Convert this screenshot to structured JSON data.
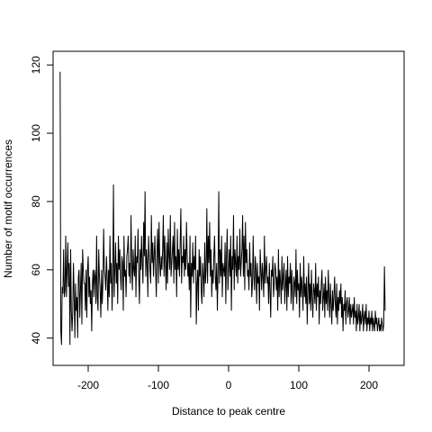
{
  "chart_data": {
    "type": "line",
    "title": "",
    "xlabel": "Distance to peak centre",
    "ylabel": "Number of motif occurrences",
    "xlim": [
      -250,
      250
    ],
    "ylim": [
      32,
      124
    ],
    "x_ticks": [
      -200,
      -100,
      0,
      100,
      200
    ],
    "y_ticks": [
      40,
      60,
      80,
      100,
      120
    ],
    "x_tick_labels": [
      "-200",
      "-100",
      "0",
      "100",
      "200"
    ],
    "y_tick_labels": [
      "40",
      "60",
      "80",
      "100",
      "120"
    ],
    "grid": false,
    "legend": "none",
    "line_color": "#000000",
    "series": [
      {
        "x_start": -240,
        "x_step": 1,
        "values": [
          118,
          42,
          38,
          55,
          53,
          66,
          52,
          54,
          70,
          52,
          60,
          68,
          55,
          62,
          38,
          66,
          48,
          42,
          48,
          62,
          52,
          40,
          56,
          48,
          52,
          40,
          58,
          60,
          46,
          54,
          62,
          44,
          66,
          60,
          56,
          56,
          48,
          60,
          46,
          60,
          64,
          52,
          58,
          50,
          54,
          42,
          56,
          60,
          52,
          60,
          58,
          50,
          70,
          52,
          48,
          66,
          58,
          54,
          46,
          60,
          50,
          56,
          72,
          60,
          58,
          54,
          64,
          58,
          48,
          60,
          52,
          70,
          56,
          62,
          48,
          58,
          85,
          52,
          60,
          68,
          56,
          62,
          50,
          70,
          60,
          66,
          58,
          54,
          64,
          62,
          48,
          70,
          58,
          60,
          52,
          64,
          66,
          70,
          58,
          62,
          56,
          76,
          62,
          54,
          66,
          60,
          58,
          70,
          52,
          64,
          62,
          72,
          58,
          50,
          66,
          60,
          70,
          62,
          56,
          74,
          64,
          83,
          58,
          66,
          62,
          52,
          70,
          64,
          60,
          56,
          76,
          62,
          68,
          58,
          64,
          70,
          60,
          52,
          66,
          72,
          56,
          74,
          62,
          58,
          64,
          60,
          66,
          76,
          58,
          70,
          62,
          54,
          68,
          56,
          72,
          64,
          60,
          76,
          58,
          62,
          66,
          70,
          56,
          74,
          60,
          64,
          52,
          72,
          60,
          66,
          58,
          68,
          78,
          56,
          64,
          62,
          70,
          58,
          66,
          60,
          74,
          64,
          58,
          62,
          54,
          70,
          46,
          62,
          58,
          68,
          56,
          64,
          60,
          70,
          44,
          56,
          60,
          48,
          66,
          58,
          64,
          54,
          50,
          62,
          58,
          52,
          68,
          56,
          60,
          78,
          56,
          70,
          62,
          74,
          58,
          66,
          52,
          60,
          56,
          64,
          70,
          58,
          54,
          62,
          48,
          60,
          83,
          56,
          66,
          58,
          70,
          52,
          62,
          60,
          58,
          68,
          50,
          64,
          72,
          54,
          60,
          66,
          58,
          70,
          48,
          64,
          60,
          76,
          54,
          66,
          62,
          58,
          70,
          56,
          64,
          60,
          72,
          58,
          62,
          66,
          76,
          58,
          70,
          54,
          74,
          62,
          66,
          58,
          60,
          54,
          68,
          58,
          62,
          52,
          56,
          70,
          58,
          54,
          64,
          60,
          50,
          62,
          56,
          58,
          48,
          66,
          60,
          54,
          62,
          58,
          52,
          70,
          56,
          60,
          64,
          56,
          58,
          50,
          62,
          54,
          46,
          60,
          58,
          64,
          52,
          56,
          62,
          60,
          54,
          58,
          48,
          66,
          52,
          60,
          56,
          50,
          64,
          54,
          58,
          62,
          50,
          56,
          60,
          48,
          64,
          52,
          58,
          56,
          62,
          50,
          60,
          54,
          48,
          58,
          56,
          52,
          66,
          50,
          60,
          54,
          56,
          46,
          62,
          52,
          58,
          54,
          48,
          64,
          52,
          56,
          50,
          58,
          44,
          54,
          62,
          50,
          56,
          48,
          60,
          52,
          46,
          56,
          54,
          50,
          62,
          48,
          56,
          52,
          58,
          44,
          54,
          50,
          56,
          60,
          48,
          52,
          56,
          46,
          58,
          50,
          54,
          48,
          60,
          52,
          46,
          56,
          50,
          44,
          54,
          48,
          52,
          58,
          50,
          46,
          56,
          44,
          52,
          48,
          54,
          50,
          56,
          46,
          52,
          42,
          50,
          48,
          54,
          44,
          50,
          52,
          46,
          48,
          52,
          44,
          50,
          46,
          48,
          50,
          44,
          52,
          46,
          48,
          42,
          50,
          44,
          46,
          50,
          42,
          48,
          44,
          46,
          50,
          42,
          46,
          48,
          44,
          50,
          42,
          46,
          44,
          48,
          42,
          46,
          44,
          48,
          42,
          46,
          44,
          42,
          48,
          44,
          46,
          42,
          44,
          46,
          42,
          44,
          42,
          46,
          44,
          42,
          44,
          61,
          48
        ]
      }
    ]
  }
}
